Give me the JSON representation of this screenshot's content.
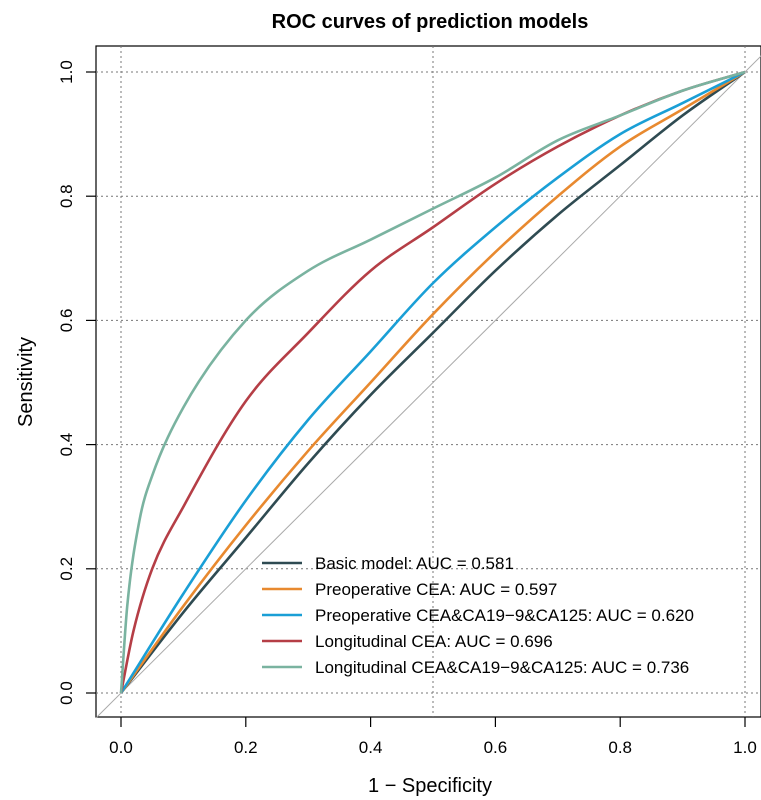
{
  "chart_data": {
    "type": "line",
    "title": "ROC curves of prediction models",
    "xlabel": "1 − Specificity",
    "ylabel": "Sensitivity",
    "xlim": [
      0,
      1
    ],
    "ylim": [
      0,
      1
    ],
    "xticks": [
      "0.0",
      "0.2",
      "0.4",
      "0.6",
      "0.8",
      "1.0"
    ],
    "yticks": [
      "0.0",
      "0.2",
      "0.4",
      "0.6",
      "0.8",
      "1.0"
    ],
    "grid": true,
    "legend_position": "bottom-right",
    "reference_line": {
      "color": "#aaaaaa"
    },
    "series": [
      {
        "name": "Basic model: AUC = 0.581",
        "color": "#2f4b52",
        "x": [
          0,
          0.1,
          0.2,
          0.3,
          0.4,
          0.5,
          0.6,
          0.7,
          0.8,
          0.9,
          1
        ],
        "y": [
          0,
          0.13,
          0.25,
          0.37,
          0.48,
          0.58,
          0.68,
          0.77,
          0.85,
          0.93,
          1
        ]
      },
      {
        "name": "Preoperative CEA: AUC = 0.597",
        "color": "#e8892f",
        "x": [
          0,
          0.1,
          0.2,
          0.3,
          0.4,
          0.5,
          0.6,
          0.7,
          0.8,
          0.9,
          1
        ],
        "y": [
          0,
          0.14,
          0.27,
          0.39,
          0.5,
          0.61,
          0.71,
          0.8,
          0.88,
          0.94,
          1
        ]
      },
      {
        "name": "Preoperative CEA&CA19−9&CA125: AUC = 0.620",
        "color": "#1a9fd6",
        "x": [
          0,
          0.1,
          0.2,
          0.3,
          0.4,
          0.5,
          0.6,
          0.7,
          0.8,
          0.9,
          1
        ],
        "y": [
          0,
          0.16,
          0.31,
          0.44,
          0.55,
          0.66,
          0.75,
          0.83,
          0.9,
          0.95,
          1
        ]
      },
      {
        "name": "Longitudinal CEA: AUC = 0.696",
        "color": "#b53e46",
        "x": [
          0,
          0.02,
          0.05,
          0.1,
          0.2,
          0.3,
          0.4,
          0.5,
          0.6,
          0.7,
          0.8,
          0.9,
          1
        ],
        "y": [
          0,
          0.1,
          0.2,
          0.3,
          0.47,
          0.58,
          0.68,
          0.75,
          0.82,
          0.88,
          0.93,
          0.97,
          1
        ]
      },
      {
        "name": "Longitudinal CEA&CA19−9&CA125: AUC = 0.736",
        "color": "#7ab3a0",
        "x": [
          0,
          0.01,
          0.03,
          0.05,
          0.1,
          0.2,
          0.3,
          0.4,
          0.5,
          0.6,
          0.7,
          0.8,
          0.9,
          1
        ],
        "y": [
          0,
          0.14,
          0.28,
          0.35,
          0.46,
          0.6,
          0.68,
          0.73,
          0.78,
          0.83,
          0.89,
          0.93,
          0.97,
          1
        ]
      }
    ]
  }
}
